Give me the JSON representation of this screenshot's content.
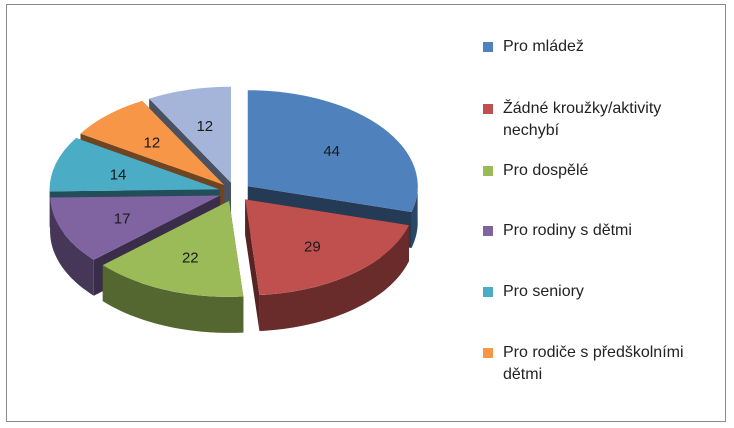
{
  "chart_data": {
    "type": "pie",
    "title": "",
    "categories": [
      "Pro mládež",
      "Žádné kroužky/aktivity nechybí",
      "Pro dospělé",
      "Pro rodiny s dětmi",
      "Pro seniory",
      "Pro rodiče s předškolními dětmi",
      ""
    ],
    "values": [
      44,
      29,
      22,
      17,
      14,
      12,
      12
    ],
    "colors": [
      "#4f81bd",
      "#c0504d",
      "#9bbb59",
      "#8064a2",
      "#4bacc6",
      "#f79646",
      "#a5b5d9"
    ],
    "style": "3d-exploded",
    "legend_position": "right"
  },
  "legend": [
    {
      "label": "Pro mládež",
      "color": "#4f81bd"
    },
    {
      "label": "Žádné kroužky/aktivity nechybí",
      "color": "#c0504d"
    },
    {
      "label": "Pro dospělé",
      "color": "#9bbb59"
    },
    {
      "label": "Pro rodiny s dětmi",
      "color": "#8064a2"
    },
    {
      "label": "Pro seniory",
      "color": "#4bacc6"
    },
    {
      "label": "Pro rodiče s předškolními dětmi",
      "color": "#f79646"
    }
  ]
}
